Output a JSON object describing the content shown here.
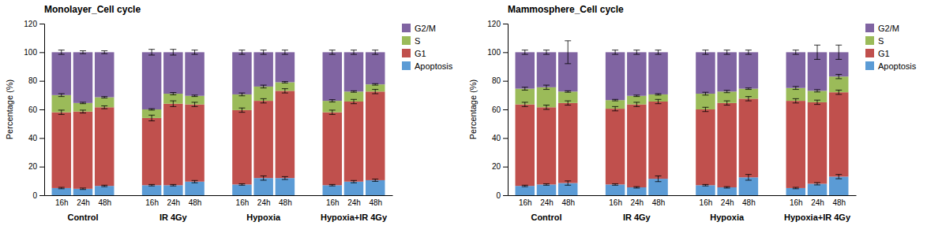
{
  "chart_data": [
    {
      "type": "bar",
      "stacked": true,
      "title": "Monolayer_Cell cycle",
      "categories": [
        "16h",
        "24h",
        "48h",
        "16h",
        "24h",
        "48h",
        "16h",
        "24h",
        "48h",
        "16h",
        "24h",
        "48h"
      ],
      "groups": [
        "Control",
        "IR 4Gy",
        "Hypoxia",
        "Hypoxia+IR 4Gy"
      ],
      "ylabel": "Percentage (%)",
      "ylim": [
        0,
        120
      ],
      "yticks": [
        0,
        20,
        40,
        60,
        80,
        100,
        120
      ],
      "grid": false,
      "legend": "upper right",
      "series": [
        {
          "name": "Apoptosis",
          "color": "#5b9bd5",
          "values": [
            5,
            4.5,
            6.5,
            7,
            7,
            9.5,
            7.5,
            12,
            12,
            7,
            9.5,
            10.5
          ],
          "errors": [
            0.5,
            0.5,
            0.5,
            0.5,
            0.5,
            0.8,
            0.5,
            1.5,
            1.0,
            0.5,
            0.8,
            0.8
          ]
        },
        {
          "name": "G1",
          "color": "#c0504d",
          "values": [
            53,
            54,
            55,
            47,
            57,
            54,
            52,
            54,
            61,
            51,
            56,
            62
          ],
          "errors": [
            1.5,
            1.0,
            1.0,
            2.0,
            2.0,
            1.5,
            1.5,
            1.5,
            1.5,
            1.5,
            1.5,
            1.5
          ]
        },
        {
          "name": "S",
          "color": "#9bbb59",
          "values": [
            12,
            6,
            7,
            6,
            7,
            6,
            11,
            10,
            6,
            8,
            7,
            5
          ],
          "errors": [
            1.0,
            0.5,
            0.5,
            0.5,
            0.8,
            0.5,
            1.0,
            1.0,
            0.5,
            0.8,
            0.5,
            0.5
          ]
        },
        {
          "name": "G2/M",
          "color": "#8064a2",
          "values": [
            30,
            35.5,
            31.5,
            40,
            29,
            30.5,
            29.5,
            24,
            21,
            34,
            27.5,
            22.5
          ],
          "errors": [
            1.5,
            1.0,
            1.0,
            2.0,
            2.0,
            1.5,
            1.5,
            1.5,
            1.5,
            1.5,
            1.5,
            1.5
          ]
        }
      ]
    },
    {
      "type": "bar",
      "stacked": true,
      "title": "Mammosphere_Cell cycle",
      "categories": [
        "16h",
        "24h",
        "48h",
        "16h",
        "24h",
        "48h",
        "16h",
        "24h",
        "48h",
        "16h",
        "24h",
        "48h"
      ],
      "groups": [
        "Control",
        "IR 4Gy",
        "Hypoxia",
        "Hypoxia+IR 4Gy"
      ],
      "ylabel": "Percentage (%)",
      "ylim": [
        0,
        120
      ],
      "yticks": [
        0,
        20,
        40,
        60,
        80,
        100,
        120
      ],
      "grid": false,
      "legend": "upper right",
      "series": [
        {
          "name": "Apoptosis",
          "color": "#5b9bd5",
          "values": [
            6.5,
            7.5,
            8.5,
            7.5,
            5.5,
            11.5,
            7,
            5.5,
            12.5,
            5,
            8,
            13
          ],
          "errors": [
            0.5,
            0.5,
            1.5,
            0.5,
            0.5,
            2.0,
            0.5,
            0.5,
            2.0,
            0.5,
            0.8,
            1.5
          ]
        },
        {
          "name": "G1",
          "color": "#c0504d",
          "values": [
            57,
            54,
            56,
            53,
            58,
            54,
            53,
            59,
            55,
            61,
            57,
            59
          ],
          "errors": [
            1.5,
            1.5,
            1.5,
            1.5,
            1.5,
            1.5,
            1.5,
            1.5,
            1.5,
            1.5,
            1.5,
            1.5
          ]
        },
        {
          "name": "S",
          "color": "#9bbb59",
          "values": [
            11,
            14,
            8,
            6,
            6,
            5,
            11,
            8,
            7,
            9,
            8,
            11
          ],
          "errors": [
            1.0,
            1.5,
            0.5,
            0.5,
            0.5,
            0.5,
            1.0,
            0.8,
            0.5,
            1.0,
            0.8,
            1.5
          ]
        },
        {
          "name": "G2/M",
          "color": "#8064a2",
          "values": [
            25.5,
            24.5,
            27.5,
            33.5,
            30.5,
            29.5,
            29,
            27.5,
            25.5,
            25,
            27,
            17
          ],
          "errors": [
            1.5,
            1.5,
            8.0,
            1.5,
            1.5,
            1.5,
            1.5,
            1.5,
            1.5,
            1.5,
            5.0,
            5.0
          ]
        }
      ]
    }
  ]
}
